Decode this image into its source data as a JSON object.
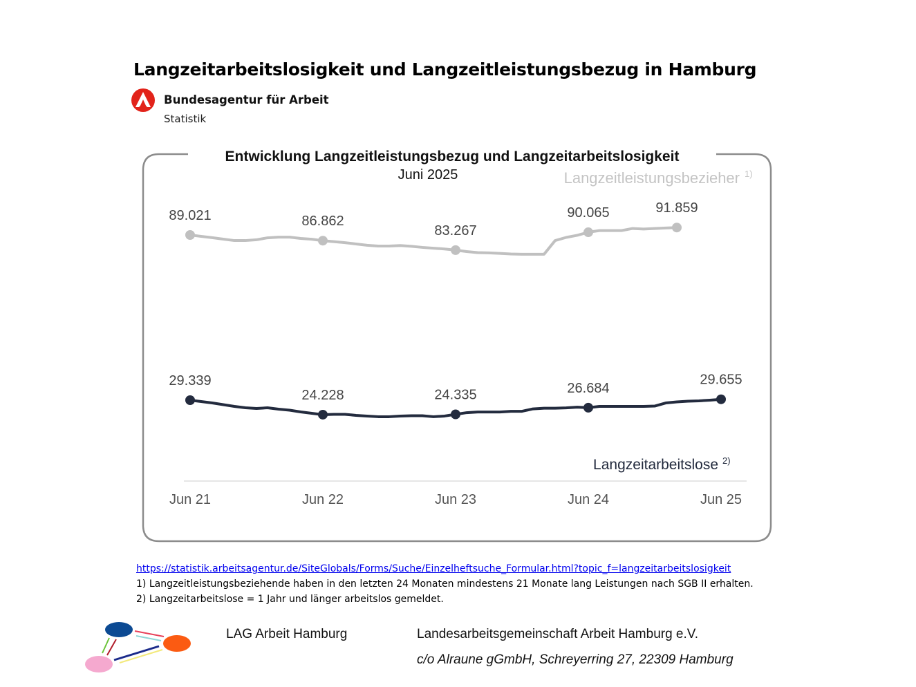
{
  "header": {
    "title": "Langzeitarbeitslosigkeit und Langzeitleistungsbezug in Hamburg",
    "org_name": "Bundesagentur für Arbeit",
    "org_sub": "Statistik"
  },
  "colors": {
    "brand_red": "#e2231a",
    "upper_series": "#c0c0c0",
    "lower_series": "#232b3e",
    "frame": "#8c8c8c"
  },
  "chart_data": {
    "type": "line",
    "title": "Entwicklung Langzeitleistungsbezug und Langzeitarbeitslosigkeit",
    "subtitle": "Juni 2025",
    "x_tick_labels": [
      "Jun 21",
      "Jun 22",
      "Jun 23",
      "Jun 24",
      "Jun 25"
    ],
    "x_range": "Jun 2021 – Jun 2025 (monthly)",
    "grid": false,
    "series": [
      {
        "name": "Langzeitleistungsbezieher",
        "footnote": "1)",
        "start": "Jun 2021",
        "values": [
          89021,
          88500,
          88000,
          87450,
          86900,
          86900,
          87200,
          87950,
          88200,
          88200,
          87700,
          87400,
          86862,
          86500,
          86100,
          85600,
          85100,
          84800,
          84800,
          85000,
          84700,
          84300,
          84000,
          83700,
          83267,
          82700,
          82300,
          82200,
          82000,
          81800,
          81700,
          81700,
          81700,
          86900,
          88100,
          88900,
          90065,
          90700,
          90700,
          90700,
          91500,
          91300,
          91500,
          91700,
          91859
        ],
        "labeled_points": [
          {
            "index": 0,
            "label": "89.021"
          },
          {
            "index": 12,
            "label": "86.862"
          },
          {
            "index": 24,
            "label": "83.267"
          },
          {
            "index": 36,
            "label": "90.065"
          },
          {
            "index": 44,
            "label": "91.859"
          }
        ]
      },
      {
        "name": "Langzeitarbeitslose",
        "footnote": "2)",
        "start": "Jun 2021",
        "values": [
          29339,
          28850,
          28360,
          27750,
          27140,
          26650,
          26400,
          26650,
          26160,
          25800,
          25190,
          24700,
          24228,
          24350,
          24350,
          23980,
          23740,
          23500,
          23500,
          23740,
          23860,
          23860,
          23500,
          23740,
          24335,
          24930,
          25170,
          25170,
          25170,
          25420,
          25420,
          26270,
          26510,
          26510,
          26630,
          26870,
          26684,
          27140,
          27140,
          27140,
          27140,
          27140,
          27260,
          28360,
          28730,
          28970,
          29100,
          29340,
          29655
        ],
        "labeled_points": [
          {
            "index": 0,
            "label": "29.339"
          },
          {
            "index": 12,
            "label": "24.228"
          },
          {
            "index": 24,
            "label": "24.335"
          },
          {
            "index": 36,
            "label": "26.684"
          },
          {
            "index": 48,
            "label": "29.655"
          }
        ]
      }
    ]
  },
  "footnotes": {
    "link": "https://statistik.arbeitsagentur.de/SiteGlobals/Forms/Suche/Einzelheftsuche_Formular.html?topic_f=langzeitarbeitslosigkeit",
    "note1": "1) Langzeitleistungsbeziehende haben in den letzten 24 Monaten mindestens 21 Monate lang Leistungen nach SGB II erhalten.",
    "note2": "2) Langzeitarbeitslose = 1 Jahr und länger arbeitslos gemeldet."
  },
  "footer": {
    "short_name": "LAG Arbeit Hamburg",
    "long_name": "Landesarbeitsgemeinschaft Arbeit Hamburg e.V.",
    "address": "c/o Alraune gGmbH, Schreyerring 27, 22309 Hamburg"
  }
}
